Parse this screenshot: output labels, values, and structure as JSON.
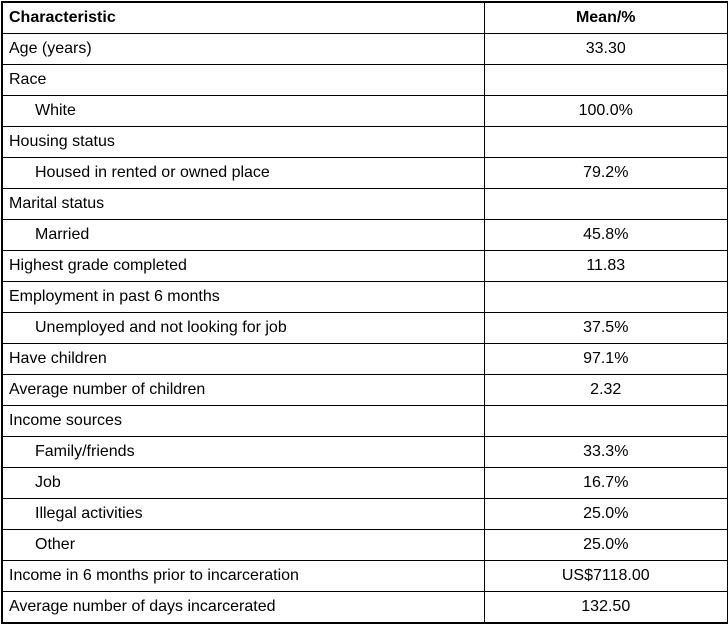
{
  "table": {
    "columns": [
      "Characteristic",
      "Mean/%"
    ],
    "rows": [
      {
        "label": "Age (years)",
        "value": "33.30",
        "indent": false
      },
      {
        "label": "Race",
        "value": "",
        "indent": false
      },
      {
        "label": "White",
        "value": "100.0%",
        "indent": true
      },
      {
        "label": "Housing status",
        "value": "",
        "indent": false
      },
      {
        "label": "Housed in rented or owned place",
        "value": "79.2%",
        "indent": true
      },
      {
        "label": "Marital status",
        "value": "",
        "indent": false
      },
      {
        "label": "Married",
        "value": "45.8%",
        "indent": true
      },
      {
        "label": "Highest grade completed",
        "value": "11.83",
        "indent": false
      },
      {
        "label": "Employment in past 6 months",
        "value": "",
        "indent": false
      },
      {
        "label": "Unemployed and not looking for job",
        "value": "37.5%",
        "indent": true
      },
      {
        "label": "Have children",
        "value": "97.1%",
        "indent": false
      },
      {
        "label": "Average number of children",
        "value": "2.32",
        "indent": false
      },
      {
        "label": "Income sources",
        "value": "",
        "indent": false
      },
      {
        "label": "Family/friends",
        "value": "33.3%",
        "indent": true
      },
      {
        "label": "Job",
        "value": "16.7%",
        "indent": true
      },
      {
        "label": "Illegal activities",
        "value": "25.0%",
        "indent": true
      },
      {
        "label": "Other",
        "value": "25.0%",
        "indent": true
      },
      {
        "label": "Income in 6 months prior to incarceration",
        "value": "US$7118.00",
        "indent": false
      },
      {
        "label": "Average number of days incarcerated",
        "value": "132.50",
        "indent": false
      }
    ],
    "colors": {
      "border": "#000000",
      "text": "#000000",
      "background": "#ffffff"
    }
  }
}
